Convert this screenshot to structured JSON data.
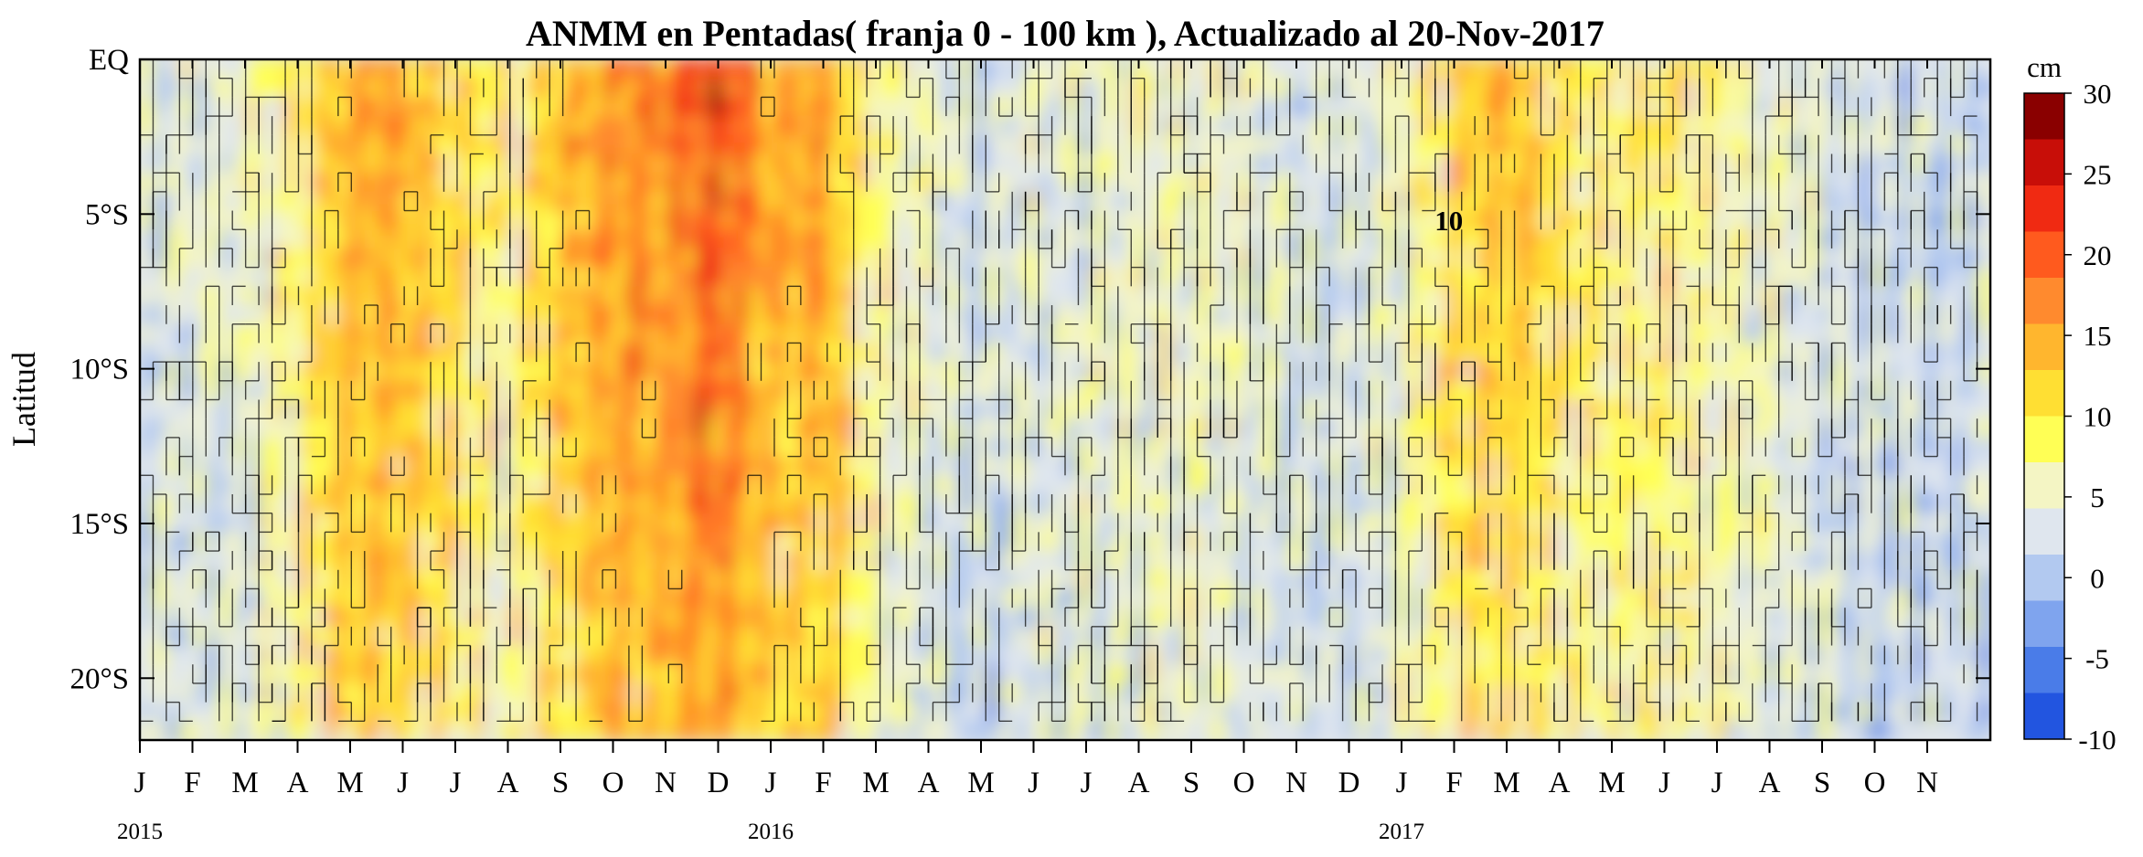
{
  "chart_data": {
    "type": "heatmap",
    "title": "ANMM en Pentadas( franja 0 - 100 km ), Actualizado al 20-Nov-2017",
    "ylabel": "Latitud",
    "xlabel": "",
    "y_ticks": [
      "EQ",
      "5°S",
      "10°S",
      "15°S",
      "20°S"
    ],
    "y_tick_values": [
      0,
      -5,
      -10,
      -15,
      -20
    ],
    "ylim": [
      -22,
      0
    ],
    "x_months": [
      "J",
      "F",
      "M",
      "A",
      "M",
      "J",
      "J",
      "A",
      "S",
      "O",
      "N",
      "D",
      "J",
      "F",
      "M",
      "A",
      "M",
      "J",
      "J",
      "A",
      "S",
      "O",
      "N",
      "D",
      "J",
      "F",
      "M",
      "A",
      "M",
      "J",
      "J",
      "A",
      "S",
      "O",
      "N"
    ],
    "x_years": [
      {
        "label": "2015",
        "month_index": 0
      },
      {
        "label": "2016",
        "month_index": 12
      },
      {
        "label": "2017",
        "month_index": 24
      }
    ],
    "xlim_months": [
      0,
      35.2
    ],
    "colorbar": {
      "unit": "cm",
      "ticks": [
        "30",
        "25",
        "20",
        "15",
        "10",
        "5",
        "0",
        "-5",
        "-10"
      ],
      "tick_values": [
        30,
        25,
        20,
        15,
        10,
        5,
        0,
        -5,
        -10
      ],
      "range": [
        -10,
        30
      ],
      "colors": [
        "#2255e0",
        "#4a7ce8",
        "#7fa4ee",
        "#b2c9f0",
        "#dfe6ee",
        "#f4f5c4",
        "#ffff55",
        "#ffdf33",
        "#ffb62e",
        "#ff8a2e",
        "#ff5a1e",
        "#f02a12",
        "#c80e08",
        "#8a0000"
      ]
    },
    "contour_levels": [
      0,
      5,
      10
    ],
    "annotations": [
      {
        "text": "10",
        "month": 24.9,
        "lat": -5.2
      }
    ],
    "anomaly_profile_by_month": [
      3,
      4,
      5,
      9,
      16,
      15,
      12,
      8,
      15,
      17,
      18,
      22,
      15,
      16,
      8,
      5,
      2,
      4,
      5,
      6,
      6,
      5,
      3,
      3,
      6,
      12,
      14,
      11,
      9,
      10,
      7,
      6,
      3,
      2,
      2
    ]
  }
}
